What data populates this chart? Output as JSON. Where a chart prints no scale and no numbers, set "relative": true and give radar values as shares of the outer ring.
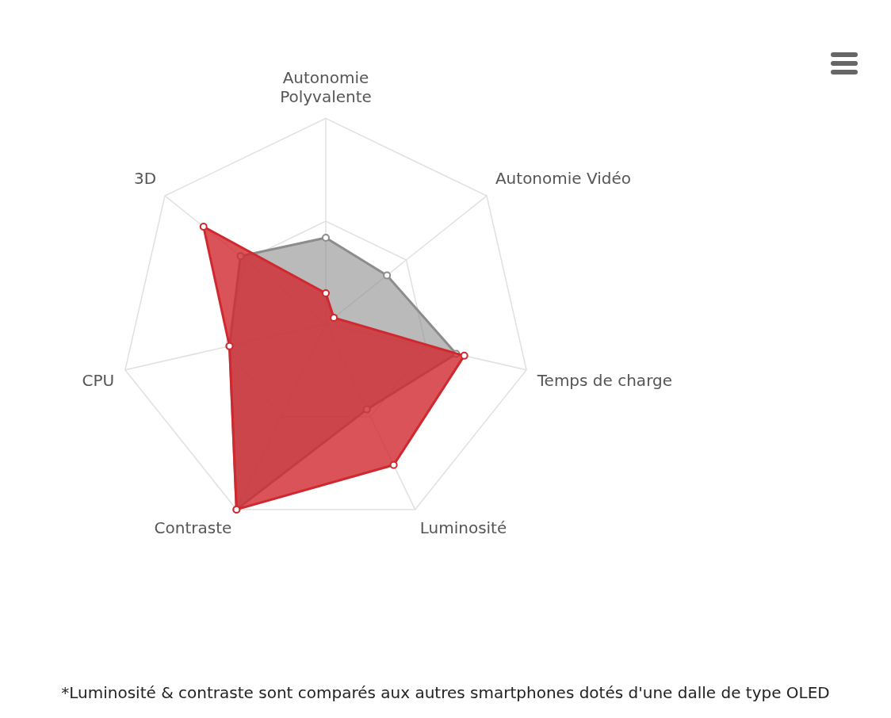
{
  "chart_data": {
    "type": "radar",
    "relative": true,
    "grid": true,
    "legend": false,
    "marker": "circle",
    "categories": [
      "Autonomie Polyvalente",
      "Autonomie Vidéo",
      "Temps de charge",
      "Luminosité",
      "Contraste",
      "CPU",
      "3D"
    ],
    "series": [
      {
        "color": "#d0282e",
        "values": [
          0.15,
          0.05,
          0.69,
          0.76,
          1.0,
          0.48,
          0.76
        ]
      },
      {
        "color": "#8c8c8c",
        "values": [
          0.42,
          0.38,
          0.65,
          0.46,
          1.0,
          0.48,
          0.53
        ]
      }
    ],
    "annotations": [
      "*Luminosité & contraste sont comparés aux autres smartphones dotés d'une dalle de type OLED"
    ]
  }
}
